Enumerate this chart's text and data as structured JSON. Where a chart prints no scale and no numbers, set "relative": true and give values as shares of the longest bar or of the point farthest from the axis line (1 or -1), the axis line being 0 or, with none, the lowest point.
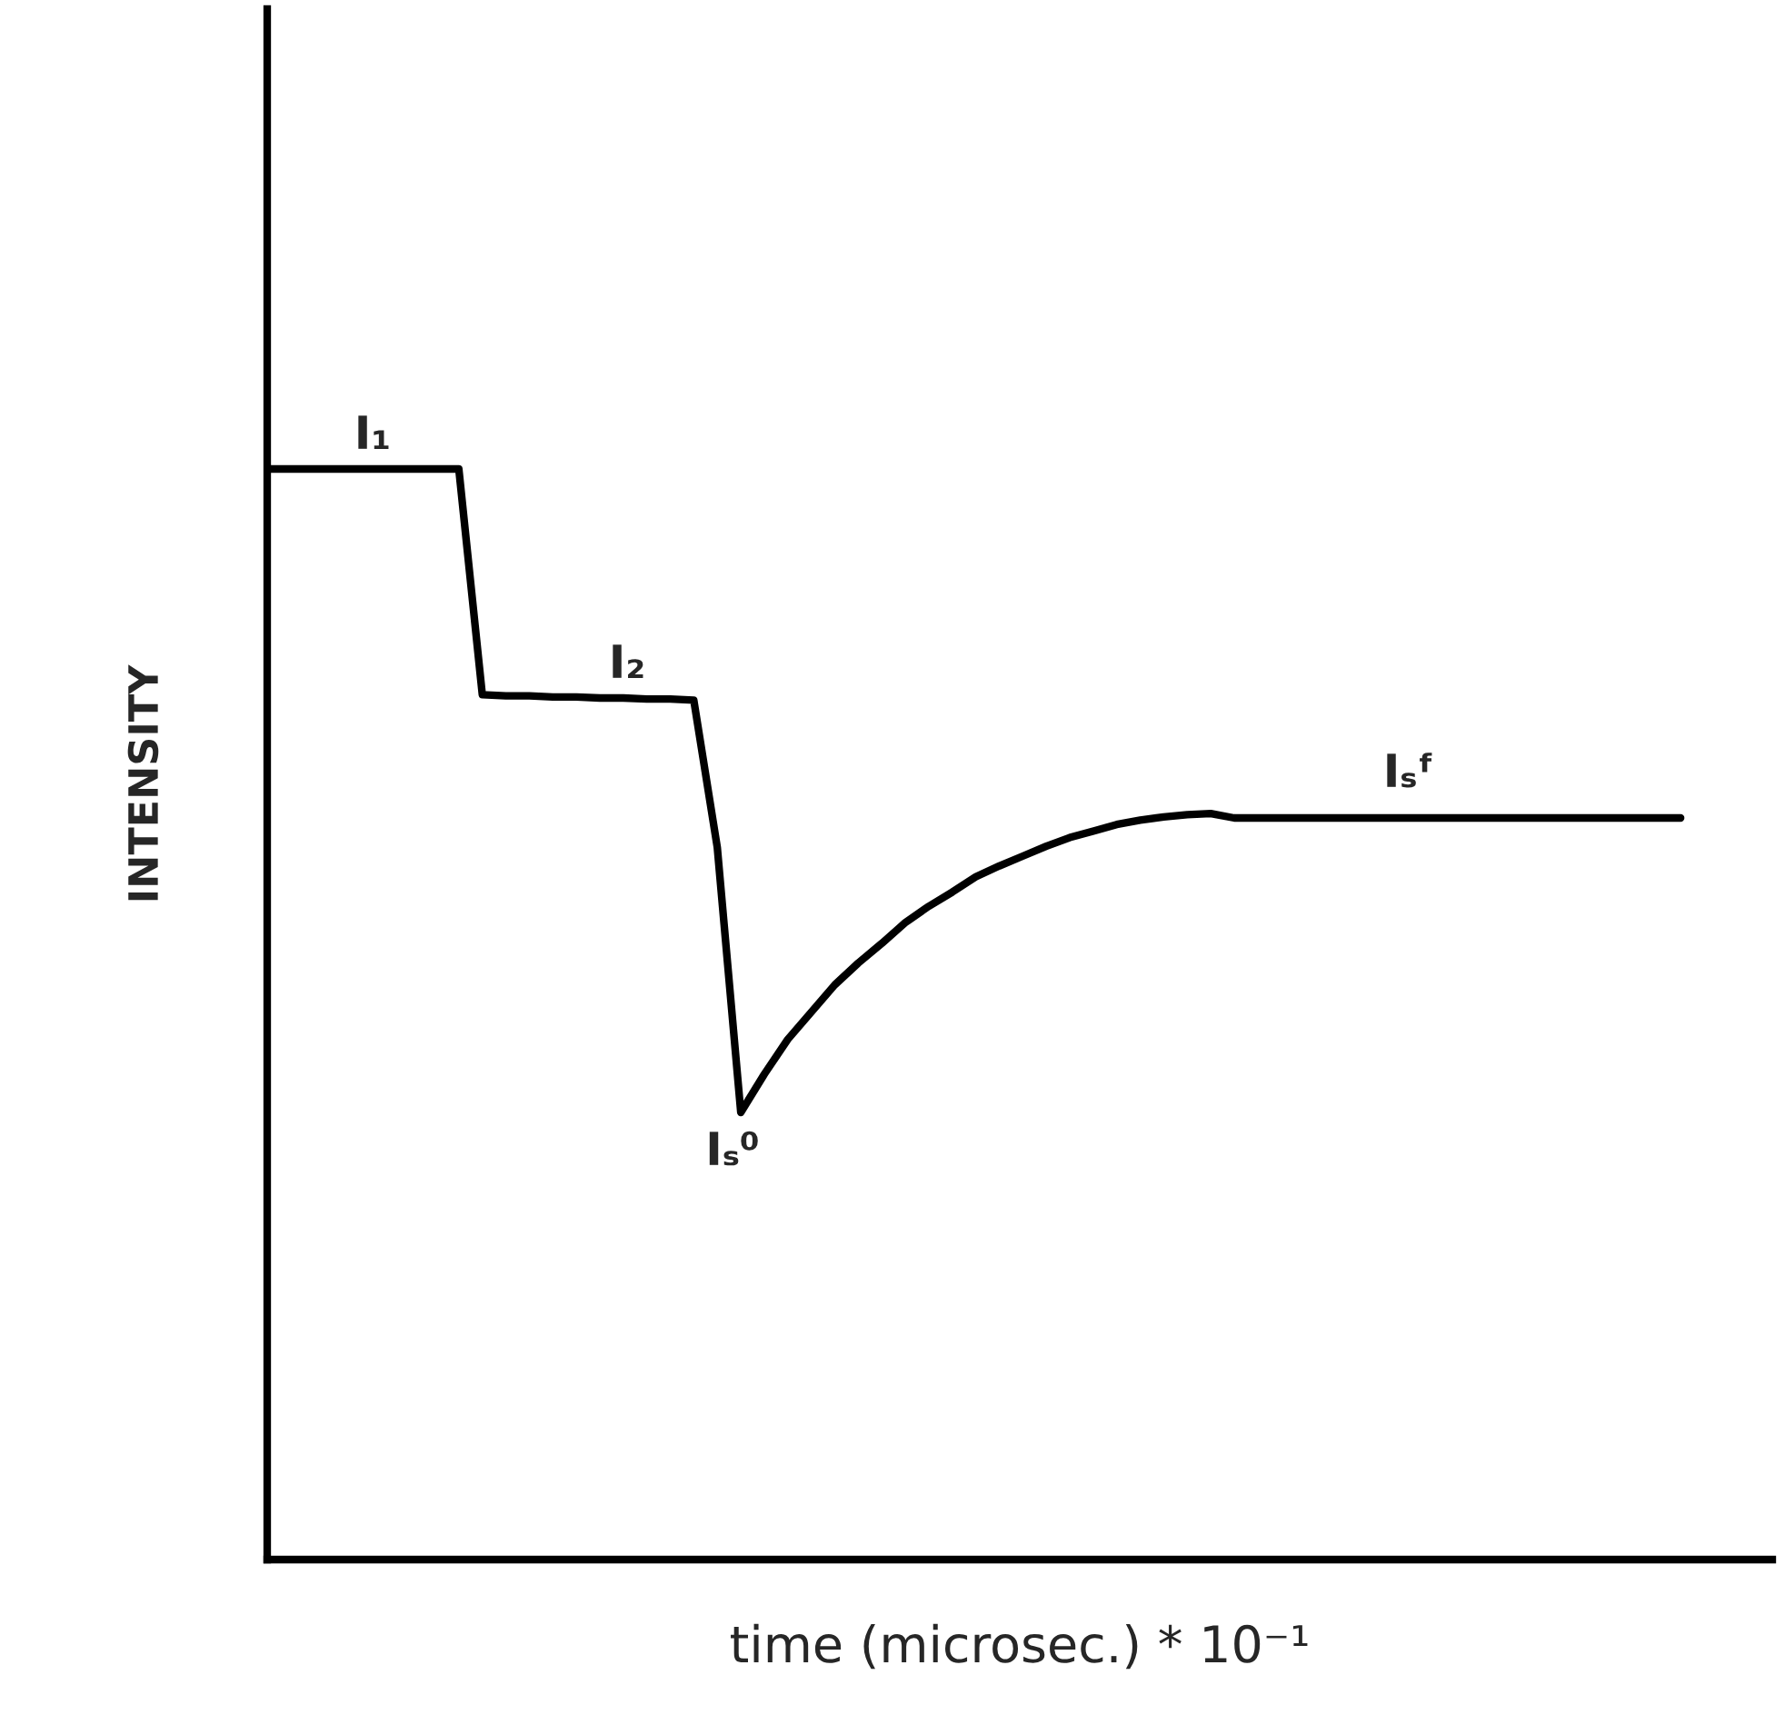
{
  "chart_data": {
    "type": "line",
    "relative": true,
    "xlabel": "time (microsec.) * 10⁻¹",
    "ylabel": "INTENSITY",
    "color": "#000000",
    "categories": [
      null,
      null,
      null,
      null,
      null,
      null,
      null,
      null,
      null,
      null,
      null,
      null,
      null,
      null,
      null,
      null,
      null,
      null,
      null,
      null,
      null,
      null,
      null,
      null,
      null,
      null,
      null,
      null,
      null,
      null,
      null,
      null,
      null,
      null,
      null,
      null,
      null,
      null,
      null,
      null,
      null,
      null,
      null,
      null,
      null,
      null,
      null,
      null,
      null,
      null,
      null,
      null,
      null,
      null,
      null,
      null,
      null,
      null,
      null,
      null,
      null
    ],
    "values": [
      1.0,
      1.0,
      1.0,
      1.0,
      1.0,
      1.0,
      1.0,
      1.0,
      1.0,
      0.793,
      0.792,
      0.792,
      0.791,
      0.791,
      0.79,
      0.79,
      0.789,
      0.789,
      0.788,
      0.653,
      0.41,
      0.445,
      0.477,
      0.502,
      0.527,
      0.547,
      0.565,
      0.584,
      0.599,
      0.612,
      0.626,
      0.636,
      0.645,
      0.654,
      0.662,
      0.668,
      0.674,
      0.678,
      0.681,
      0.683,
      0.684,
      0.68,
      0.68,
      0.68,
      0.68,
      0.68,
      0.68,
      0.68,
      0.68,
      0.68,
      0.68,
      0.68,
      0.68,
      0.68,
      0.68,
      0.68,
      0.68,
      0.68,
      0.68,
      0.68,
      0.68
    ],
    "annotations": [
      "I₁",
      "I₂",
      "Iₛ⁰",
      "Iₛᶠ"
    ]
  }
}
